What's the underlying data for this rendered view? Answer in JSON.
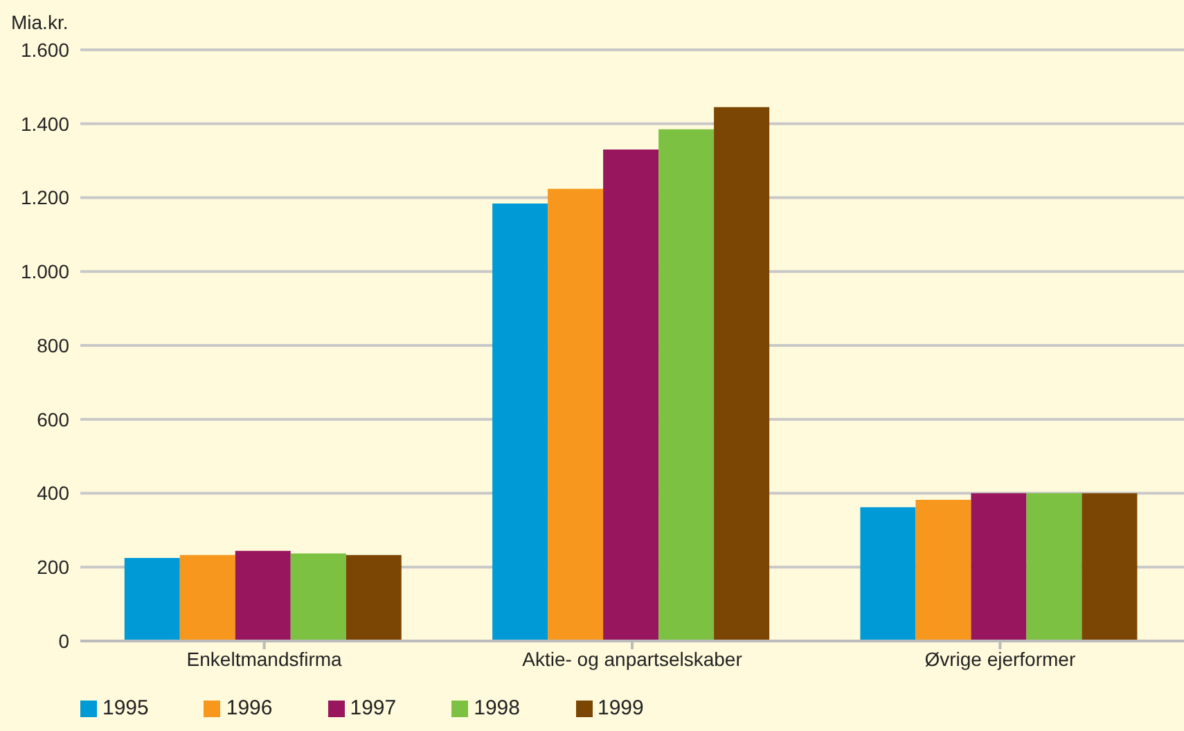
{
  "chart_data": {
    "type": "bar",
    "ylabel": "Mia.kr.",
    "categories": [
      "Enkeltmandsfirma",
      "Aktie- og anpartselskaber",
      "Øvrige ejerformer"
    ],
    "series": [
      {
        "name": "1995",
        "color": "#009bd6",
        "values": [
          225,
          1184,
          362
        ]
      },
      {
        "name": "1996",
        "color": "#f7971e",
        "values": [
          233,
          1224,
          382
        ]
      },
      {
        "name": "1997",
        "color": "#98165e",
        "values": [
          244,
          1330,
          400
        ]
      },
      {
        "name": "1998",
        "color": "#7dc142",
        "values": [
          237,
          1385,
          400
        ]
      },
      {
        "name": "1999",
        "color": "#7b4603",
        "values": [
          233,
          1445,
          400
        ]
      }
    ],
    "ylim": [
      0,
      1600
    ],
    "yticks": [
      {
        "value": 0,
        "label": "0"
      },
      {
        "value": 200,
        "label": "200"
      },
      {
        "value": 400,
        "label": "400"
      },
      {
        "value": 600,
        "label": "600"
      },
      {
        "value": 800,
        "label": "800"
      },
      {
        "value": 1000,
        "label": "1.000"
      },
      {
        "value": 1200,
        "label": "1.200"
      },
      {
        "value": 1400,
        "label": "1.400"
      },
      {
        "value": 1600,
        "label": "1.600"
      }
    ],
    "grid": "y",
    "legend": "bottom left"
  }
}
